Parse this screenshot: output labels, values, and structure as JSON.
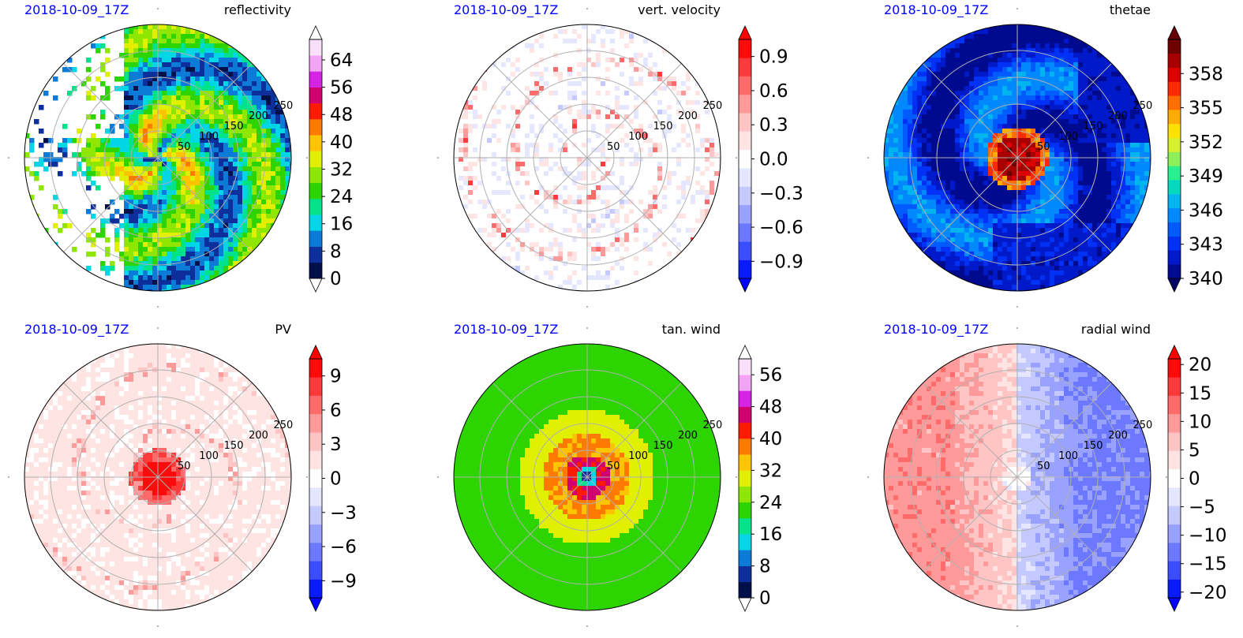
{
  "chart_data": [
    {
      "type": "heatmap",
      "projection": "polar",
      "date_label": "2018-10-09_17Z",
      "title": "reflectivity",
      "radial_ticks": [
        "50",
        "100",
        "150",
        "200",
        "250"
      ],
      "colorbar": {
        "min": 0,
        "max": 70,
        "extend": "both",
        "ticks": [
          0,
          8,
          16,
          24,
          32,
          40,
          48,
          56,
          64
        ],
        "tick_labels": [
          "0",
          "8",
          "16",
          "24",
          "32",
          "40",
          "48",
          "56",
          "64"
        ],
        "palette": [
          "#02104a",
          "#0d2f9b",
          "#0b7bd7",
          "#00d6e6",
          "#00e38a",
          "#2ed400",
          "#8fe600",
          "#e1f000",
          "#ffc400",
          "#ff7a00",
          "#ff1a00",
          "#d00070",
          "#d524e6",
          "#f3a3f5",
          "#fbe0fb"
        ],
        "under_color": "#ffffff",
        "over_color": "#ffffff"
      },
      "field_note": "left portion white (no echo); green with yellow-red spiral bands around center"
    },
    {
      "type": "heatmap",
      "projection": "polar",
      "date_label": "2018-10-09_17Z",
      "title": "vert. velocity",
      "radial_ticks": [
        "50",
        "100",
        "150",
        "200",
        "250"
      ],
      "colorbar": {
        "min": -1.05,
        "max": 1.05,
        "extend": "both",
        "ticks": [
          -0.9,
          -0.6,
          -0.3,
          0.0,
          0.3,
          0.6,
          0.9
        ],
        "tick_labels": [
          "−0.9",
          "−0.6",
          "−0.3",
          "0.0",
          "0.3",
          "0.6",
          "0.9"
        ],
        "palette": [
          "#0a1aff",
          "#3a4dff",
          "#6b78ff",
          "#9aa2ff",
          "#c4c9ff",
          "#e4e7ff",
          "#ffffff",
          "#ffe4e4",
          "#ffc4c4",
          "#ff9a9a",
          "#ff6b6b",
          "#ff3a3a",
          "#ff0a0a"
        ],
        "under_color": "#0000ff",
        "over_color": "#ff0000"
      },
      "field_note": "mostly near zero with red updraft spiral bands"
    },
    {
      "type": "heatmap",
      "projection": "polar",
      "date_label": "2018-10-09_17Z",
      "title": "thetae",
      "radial_ticks": [
        "50",
        "100",
        "150",
        "200",
        "250"
      ],
      "colorbar": {
        "min": 340,
        "max": 361,
        "extend": "both",
        "ticks": [
          340,
          343,
          346,
          349,
          352,
          355,
          358
        ],
        "tick_labels": [
          "340",
          "343",
          "346",
          "349",
          "352",
          "355",
          "358"
        ],
        "palette": [
          "#000a8f",
          "#0019c9",
          "#0031f5",
          "#005bff",
          "#0088ff",
          "#00b4f0",
          "#00d9c0",
          "#28f090",
          "#8cf05a",
          "#d8f02d",
          "#ffe100",
          "#ffac00",
          "#ff6e00",
          "#ff2a00",
          "#dc0000",
          "#a80000",
          "#6e0000"
        ],
        "under_color": "#000066",
        "over_color": "#660000"
      },
      "field_note": "warm red core at center, cyan spiral bands on blue background"
    },
    {
      "type": "heatmap",
      "projection": "polar",
      "date_label": "2018-10-09_17Z",
      "title": "PV",
      "radial_ticks": [
        "50",
        "100",
        "150",
        "200",
        "250"
      ],
      "colorbar": {
        "min": -10.5,
        "max": 10.5,
        "extend": "both",
        "ticks": [
          -9,
          -6,
          -3,
          0,
          3,
          6,
          9
        ],
        "tick_labels": [
          "−9",
          "−6",
          "−3",
          "0",
          "3",
          "6",
          "9"
        ],
        "palette": [
          "#0a1aff",
          "#3a4dff",
          "#6b78ff",
          "#9aa2ff",
          "#c4c9ff",
          "#e4e7ff",
          "#ffffff",
          "#ffe4e4",
          "#ffc4c4",
          "#ff9a9a",
          "#ff6b6b",
          "#ff3a3a",
          "#ff0a0a"
        ],
        "under_color": "#0000ff",
        "over_color": "#ff0000"
      },
      "field_note": "strong positive core at center with faint pink background"
    },
    {
      "type": "heatmap",
      "projection": "polar",
      "date_label": "2018-10-09_17Z",
      "title": "tan. wind",
      "radial_ticks": [
        "50",
        "100",
        "150",
        "200",
        "250"
      ],
      "colorbar": {
        "min": 0,
        "max": 60,
        "extend": "both",
        "ticks": [
          0,
          8,
          16,
          24,
          32,
          40,
          48,
          56
        ],
        "tick_labels": [
          "0",
          "8",
          "16",
          "24",
          "32",
          "40",
          "48",
          "56"
        ],
        "palette": [
          "#02104a",
          "#0d2f9b",
          "#0b7bd7",
          "#00d6e6",
          "#00e38a",
          "#2ed400",
          "#8fe600",
          "#e1f000",
          "#ffc400",
          "#ff7a00",
          "#ff1a00",
          "#d00070",
          "#d524e6",
          "#f3a3f5",
          "#fbe0fb"
        ],
        "under_color": "#ffffff",
        "over_color": "#ffffff"
      },
      "field_note": "green outer field, yellow-orange ring and red eyewall near center, blue eye"
    },
    {
      "type": "heatmap",
      "projection": "polar",
      "date_label": "2018-10-09_17Z",
      "title": "radial wind",
      "radial_ticks": [
        "50",
        "100",
        "150",
        "200",
        "250"
      ],
      "colorbar": {
        "min": -21,
        "max": 21,
        "extend": "both",
        "ticks": [
          -20,
          -15,
          -10,
          -5,
          0,
          5,
          10,
          15,
          20
        ],
        "tick_labels": [
          "−20",
          "−15",
          "−10",
          "−5",
          "0",
          "5",
          "10",
          "15",
          "20"
        ],
        "palette": [
          "#0a1aff",
          "#3a4dff",
          "#6b78ff",
          "#9aa2ff",
          "#c4c9ff",
          "#e4e7ff",
          "#ffffff",
          "#ffe4e4",
          "#ffc4c4",
          "#ff9a9a",
          "#ff6b6b",
          "#ff3a3a",
          "#ff0a0a"
        ],
        "under_color": "#0000ff",
        "over_color": "#ff0000"
      },
      "field_note": "inflow (red) on west side, outflow (blue) on east side"
    }
  ]
}
